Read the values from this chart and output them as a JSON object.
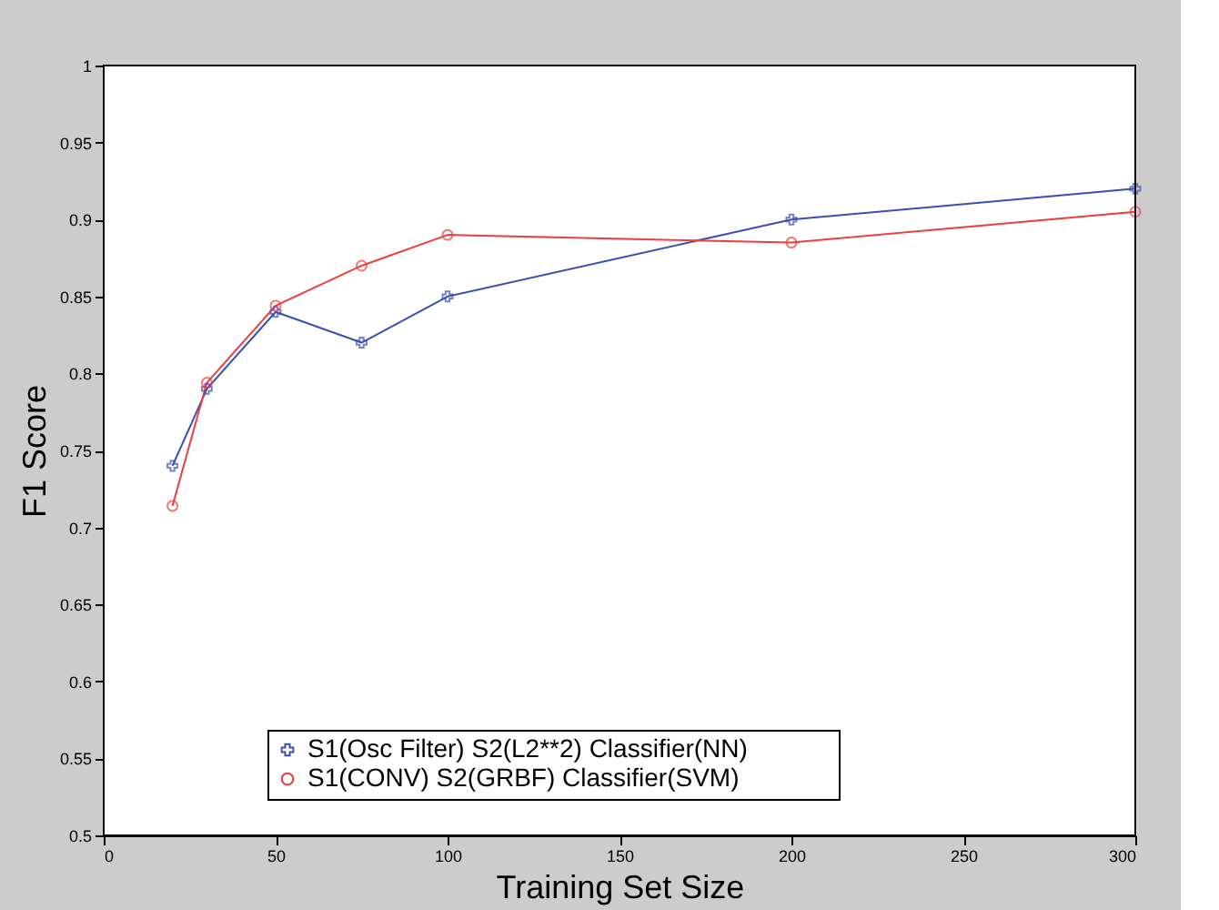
{
  "chart_data": {
    "type": "line",
    "xlabel": "Training Set Size",
    "ylabel": "F1 Score",
    "x": [
      20,
      30,
      50,
      75,
      100,
      200,
      300
    ],
    "series": [
      {
        "name": "S1(Osc Filter)    S2(L2**2)    Classifier(NN)",
        "color": "#3a4fb0",
        "marker": "cross",
        "values": [
          0.74,
          0.79,
          0.84,
          0.82,
          0.85,
          0.9,
          0.92
        ]
      },
      {
        "name": "S1(CONV)          S2(GRBF)     Classifier(SVM)",
        "color": "#f03c3c",
        "marker": "circle",
        "values": [
          0.714,
          0.794,
          0.844,
          0.87,
          0.89,
          0.885,
          0.905
        ]
      }
    ],
    "xlim": [
      0,
      300
    ],
    "xticks": [
      0,
      50,
      100,
      150,
      200,
      250,
      300
    ],
    "ylim": [
      0.5,
      1
    ],
    "yticks": [
      0.5,
      0.55,
      0.6,
      0.65,
      0.7,
      0.75,
      0.8,
      0.85,
      0.9,
      0.95,
      1
    ],
    "legend": "bottom",
    "line_style": "solid"
  }
}
